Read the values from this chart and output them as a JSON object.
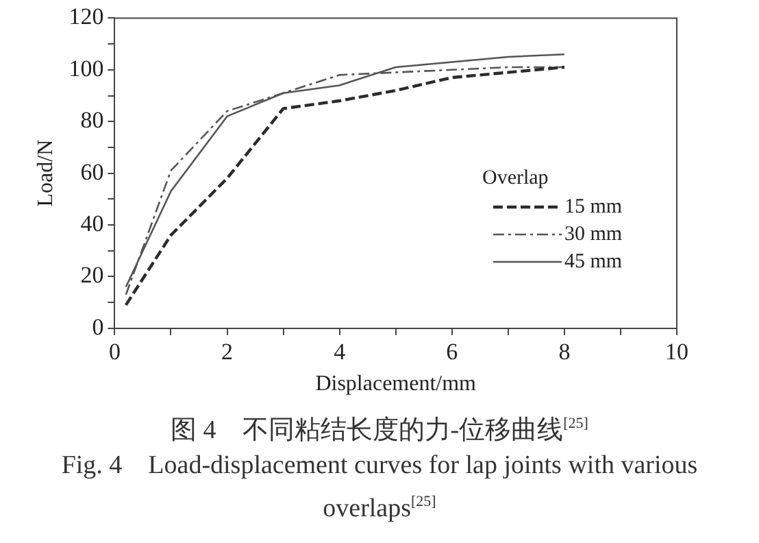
{
  "chart_data": {
    "type": "line",
    "title": "图 4　不同粘结长度的力-位移曲线$^{[25]}$",
    "subtitle": "Fig. 4　Load-displacement curves for lap joints with various overlaps$^{[25]}$",
    "xlabel": "Displacement/mm",
    "ylabel": "Load/N",
    "legend_title": "Overlap",
    "legend": "right",
    "marker": "none",
    "x": [
      0.2,
      1,
      2,
      3,
      4,
      5,
      6,
      7,
      8
    ],
    "xlim": [
      0,
      10
    ],
    "xticks": [
      0,
      {
        "value": 1,
        "label": null
      },
      2,
      {
        "value": 3,
        "label": null
      },
      4,
      {
        "value": 5,
        "label": null
      },
      6,
      {
        "value": 7,
        "label": null
      },
      8,
      {
        "value": 9,
        "label": null
      },
      10
    ],
    "ylim": [
      0,
      120
    ],
    "yticks": [
      0,
      {
        "value": 10,
        "label": null
      },
      20,
      {
        "value": 30,
        "label": null
      },
      40,
      {
        "value": 50,
        "label": null
      },
      60,
      {
        "value": 70,
        "label": null
      },
      80,
      {
        "value": 90,
        "label": null
      },
      100,
      {
        "value": 110,
        "label": null
      },
      120
    ],
    "grid": false,
    "series": [
      {
        "name": "15 mm",
        "color": "#2b2b2b",
        "line_style": "dashed",
        "values": [
          9,
          36,
          58,
          85,
          88,
          92,
          97,
          99,
          101
        ]
      },
      {
        "name": "30 mm",
        "color": "#555555",
        "line_style": "dotted",
        "values": [
          13,
          61,
          84,
          91,
          98,
          99,
          100,
          101,
          101
        ]
      },
      {
        "name": "45 mm",
        "color": "#555555",
        "line_style": "solid",
        "values": [
          16,
          53,
          82,
          91,
          94,
          101,
          103,
          105,
          106
        ]
      }
    ]
  }
}
